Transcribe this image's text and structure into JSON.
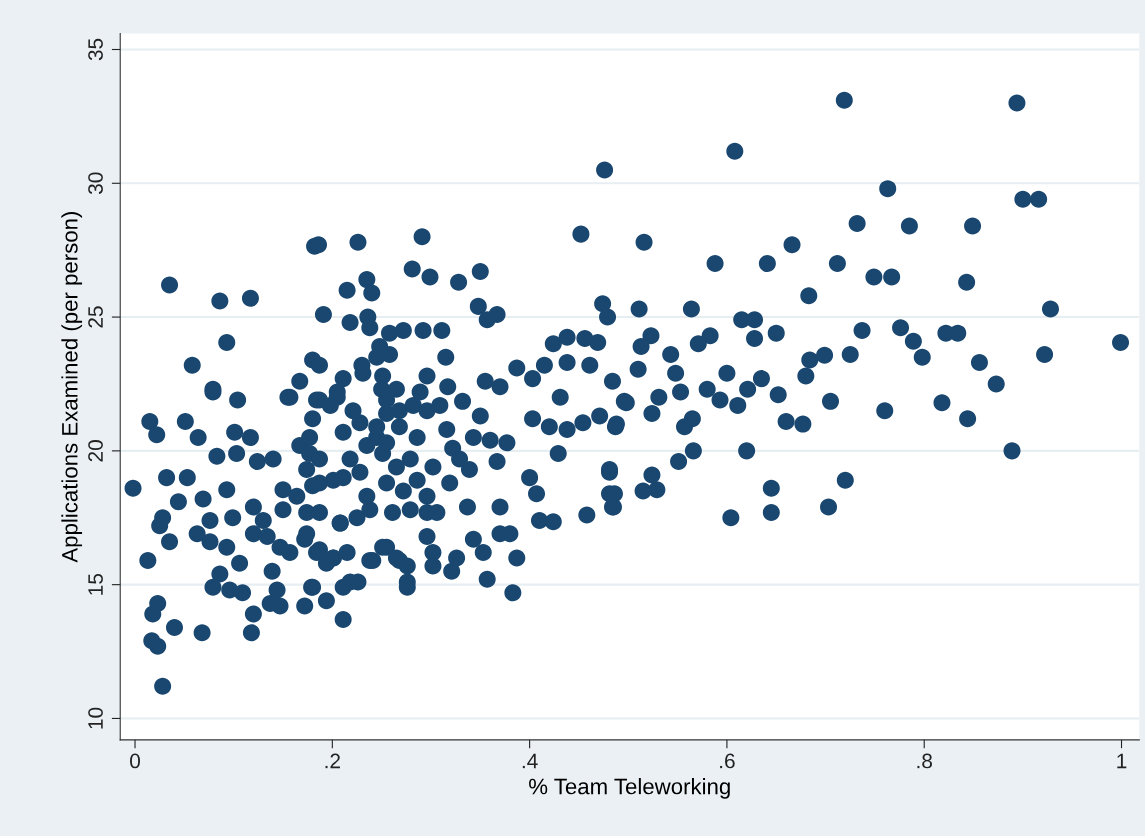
{
  "chart_data": {
    "type": "scatter",
    "xlabel": "% Team Teleworking",
    "ylabel": "Applications Examined (per person)",
    "xlim": [
      -0.015,
      1.018
    ],
    "ylim": [
      9.2,
      35.6
    ],
    "xticks": [
      {
        "value": 0,
        "label": "0"
      },
      {
        "value": 0.2,
        "label": ".2"
      },
      {
        "value": 0.4,
        "label": ".4"
      },
      {
        "value": 0.6,
        "label": ".6"
      },
      {
        "value": 0.8,
        "label": ".8"
      },
      {
        "value": 1,
        "label": "1"
      }
    ],
    "yticks": [
      10,
      15,
      20,
      25,
      30,
      35
    ],
    "grid": "y",
    "marker": "circle",
    "series": [
      {
        "color": "#1a4770",
        "x": [
          0.719,
          0.894,
          0.608,
          0.476,
          0.763,
          0.9,
          0.916,
          0.732,
          0.785,
          0.849,
          0.516,
          0.666,
          0.588,
          0.641,
          0.712,
          0.749,
          0.767,
          0.843,
          0.683,
          0.928,
          0.564,
          0.511,
          0.615,
          0.628,
          0.65,
          0.737,
          0.776,
          0.789,
          0.822,
          0.834,
          0.922,
          0.999,
          0.798,
          0.856,
          0.873,
          0.725,
          0.699,
          0.684,
          0.68,
          0.628,
          0.583,
          0.571,
          0.523,
          0.513,
          0.51,
          0.543,
          0.548,
          0.6,
          0.553,
          0.58,
          0.593,
          0.611,
          0.621,
          0.635,
          0.652,
          0.705,
          0.76,
          0.818,
          0.844,
          0.498,
          0.531,
          0.524,
          0.565,
          0.557,
          0.66,
          0.677,
          0.487,
          0.566,
          0.551,
          0.62,
          0.889,
          0.481,
          0.481,
          0.485,
          0.524,
          0.515,
          0.529,
          0.645,
          0.72,
          0.645,
          0.703,
          0.604,
          0.028,
          0.023,
          0.017,
          0.04,
          0.018,
          0.023,
          0.068,
          0.118,
          0.013,
          -0.002,
          0.079,
          0.104,
          0.155,
          0.015,
          0.022,
          0.051,
          0.064,
          0.101,
          0.117,
          0.167,
          0.083,
          0.103,
          0.124,
          0.14,
          0.032,
          0.053,
          0.093,
          0.044,
          0.028,
          0.025,
          0.035,
          0.069,
          0.076,
          0.063,
          0.099,
          0.12,
          0.13,
          0.12,
          0.134,
          0.15,
          0.15,
          0.164,
          0.174,
          0.174,
          0.187,
          0.208,
          0.147,
          0.157,
          0.076,
          0.093,
          0.106,
          0.184,
          0.201,
          0.139,
          0.086,
          0.079,
          0.096,
          0.109,
          0.144,
          0.137,
          0.12,
          0.147,
          0.179,
          0.172,
          0.194,
          0.211,
          0.218,
          0.226,
          0.241,
          0.255,
          0.268,
          0.276,
          0.167,
          0.157,
          0.187,
          0.205,
          0.035,
          0.086,
          0.117,
          0.093,
          0.058,
          0.079,
          0.182,
          0.186,
          0.226,
          0.291,
          0.452,
          0.281,
          0.299,
          0.328,
          0.35,
          0.215,
          0.235,
          0.24,
          0.191,
          0.218,
          0.236,
          0.238,
          0.348,
          0.367,
          0.357,
          0.474,
          0.479,
          0.258,
          0.272,
          0.292,
          0.311,
          0.424,
          0.438,
          0.456,
          0.469,
          0.248,
          0.258,
          0.245,
          0.315,
          0.18,
          0.187,
          0.23,
          0.231,
          0.211,
          0.251,
          0.25,
          0.296,
          0.289,
          0.317,
          0.332,
          0.387,
          0.403,
          0.355,
          0.37,
          0.415,
          0.438,
          0.461,
          0.484,
          0.431,
          0.35,
          0.403,
          0.42,
          0.438,
          0.454,
          0.471,
          0.488,
          0.496,
          0.429,
          0.316,
          0.322,
          0.329,
          0.339,
          0.343,
          0.36,
          0.377,
          0.367,
          0.4,
          0.407,
          0.481,
          0.486,
          0.484,
          0.458,
          0.41,
          0.424,
          0.37,
          0.337,
          0.37,
          0.38,
          0.387,
          0.383,
          0.343,
          0.353,
          0.326,
          0.321,
          0.357,
          0.296,
          0.302,
          0.302,
          0.251,
          0.238,
          0.265,
          0.276,
          0.276,
          0.211,
          0.18,
          0.201,
          0.208,
          0.225,
          0.238,
          0.261,
          0.279,
          0.296,
          0.306,
          0.18,
          0.201,
          0.211,
          0.235,
          0.255,
          0.272,
          0.286,
          0.296,
          0.302,
          0.319,
          0.177,
          0.187,
          0.218,
          0.228,
          0.251,
          0.265,
          0.279,
          0.286,
          0.245,
          0.255,
          0.211,
          0.228,
          0.235,
          0.18,
          0.198,
          0.184,
          0.205,
          0.221,
          0.255,
          0.268,
          0.282,
          0.296,
          0.309,
          0.245,
          0.268,
          0.255,
          0.265,
          0.177,
          0.174,
          0.187,
          0.172,
          0.187,
          0.194,
          0.215
        ],
        "values": [
          33.1,
          33.0,
          31.2,
          30.5,
          29.8,
          29.4,
          29.4,
          28.5,
          28.4,
          28.4,
          27.8,
          27.7,
          27.0,
          27.0,
          27.0,
          26.5,
          26.5,
          26.3,
          25.8,
          25.3,
          25.3,
          25.3,
          24.9,
          24.9,
          24.4,
          24.5,
          24.6,
          24.1,
          24.4,
          24.4,
          23.6,
          24.05,
          23.5,
          23.3,
          22.5,
          23.6,
          23.57,
          23.4,
          22.8,
          24.2,
          24.3,
          24.0,
          24.3,
          23.9,
          23.05,
          23.6,
          22.9,
          22.9,
          22.2,
          22.3,
          21.9,
          21.7,
          22.3,
          22.7,
          22.1,
          21.85,
          21.5,
          21.8,
          21.2,
          21.8,
          22.0,
          21.4,
          21.2,
          20.9,
          21.1,
          21.0,
          20.9,
          20.0,
          19.6,
          20.0,
          20.0,
          19.2,
          18.4,
          17.9,
          19.1,
          18.5,
          18.55,
          18.6,
          18.9,
          17.7,
          17.9,
          17.5,
          11.2,
          12.7,
          12.9,
          13.4,
          13.9,
          14.3,
          13.2,
          13.2,
          15.9,
          18.6,
          22.2,
          21.9,
          22.0,
          21.1,
          20.6,
          21.1,
          20.5,
          20.7,
          20.5,
          20.2,
          19.8,
          19.9,
          19.6,
          19.7,
          19.0,
          19.0,
          18.55,
          18.1,
          17.5,
          17.2,
          16.6,
          18.2,
          17.4,
          16.9,
          17.5,
          17.9,
          17.4,
          16.9,
          16.8,
          18.55,
          17.8,
          18.3,
          17.7,
          16.9,
          17.7,
          17.3,
          16.4,
          16.2,
          16.6,
          16.4,
          15.8,
          16.2,
          16.0,
          15.5,
          15.4,
          14.9,
          14.8,
          14.7,
          14.8,
          14.3,
          13.9,
          14.2,
          14.9,
          14.2,
          14.4,
          13.7,
          15.1,
          15.1,
          15.9,
          16.4,
          15.9,
          14.9,
          22.6,
          22.0,
          21.9,
          22.0,
          26.2,
          25.6,
          25.7,
          24.05,
          23.2,
          22.3,
          27.65,
          27.7,
          27.8,
          28.0,
          28.1,
          26.8,
          26.5,
          26.3,
          26.7,
          26.0,
          26.4,
          25.9,
          25.1,
          24.8,
          25.0,
          24.6,
          25.4,
          25.1,
          24.9,
          25.5,
          25.0,
          24.4,
          24.5,
          24.5,
          24.5,
          24.0,
          24.25,
          24.2,
          24.05,
          23.9,
          23.6,
          23.5,
          23.5,
          23.4,
          23.2,
          23.2,
          22.9,
          22.7,
          22.8,
          22.3,
          22.8,
          22.2,
          22.4,
          21.85,
          23.1,
          22.7,
          22.6,
          22.4,
          23.2,
          23.3,
          23.2,
          22.6,
          22.0,
          21.3,
          21.2,
          20.9,
          20.8,
          21.05,
          21.3,
          21.0,
          21.85,
          19.9,
          20.8,
          20.1,
          19.7,
          19.3,
          20.5,
          20.4,
          20.3,
          19.6,
          19.0,
          18.4,
          19.3,
          18.4,
          17.9,
          17.6,
          17.4,
          17.35,
          17.9,
          17.9,
          16.9,
          16.9,
          16.0,
          14.7,
          16.7,
          16.2,
          16.0,
          15.5,
          15.2,
          16.8,
          16.2,
          15.7,
          16.4,
          15.9,
          16.0,
          15.7,
          15.1,
          14.9,
          14.9,
          16.0,
          17.3,
          17.5,
          17.8,
          17.7,
          17.8,
          17.7,
          17.7,
          18.7,
          18.9,
          19.0,
          18.3,
          18.8,
          18.5,
          18.9,
          18.3,
          19.4,
          18.8,
          19.9,
          19.7,
          19.7,
          19.2,
          19.9,
          19.4,
          19.7,
          20.5,
          20.5,
          20.3,
          20.7,
          21.05,
          20.2,
          21.2,
          21.7,
          21.9,
          22.2,
          21.5,
          21.4,
          21.5,
          21.7,
          21.5,
          21.7,
          20.9,
          20.9,
          21.9,
          22.3,
          20.5,
          19.3,
          18.8,
          16.7,
          16.3,
          15.8,
          16.2
        ]
      }
    ]
  }
}
